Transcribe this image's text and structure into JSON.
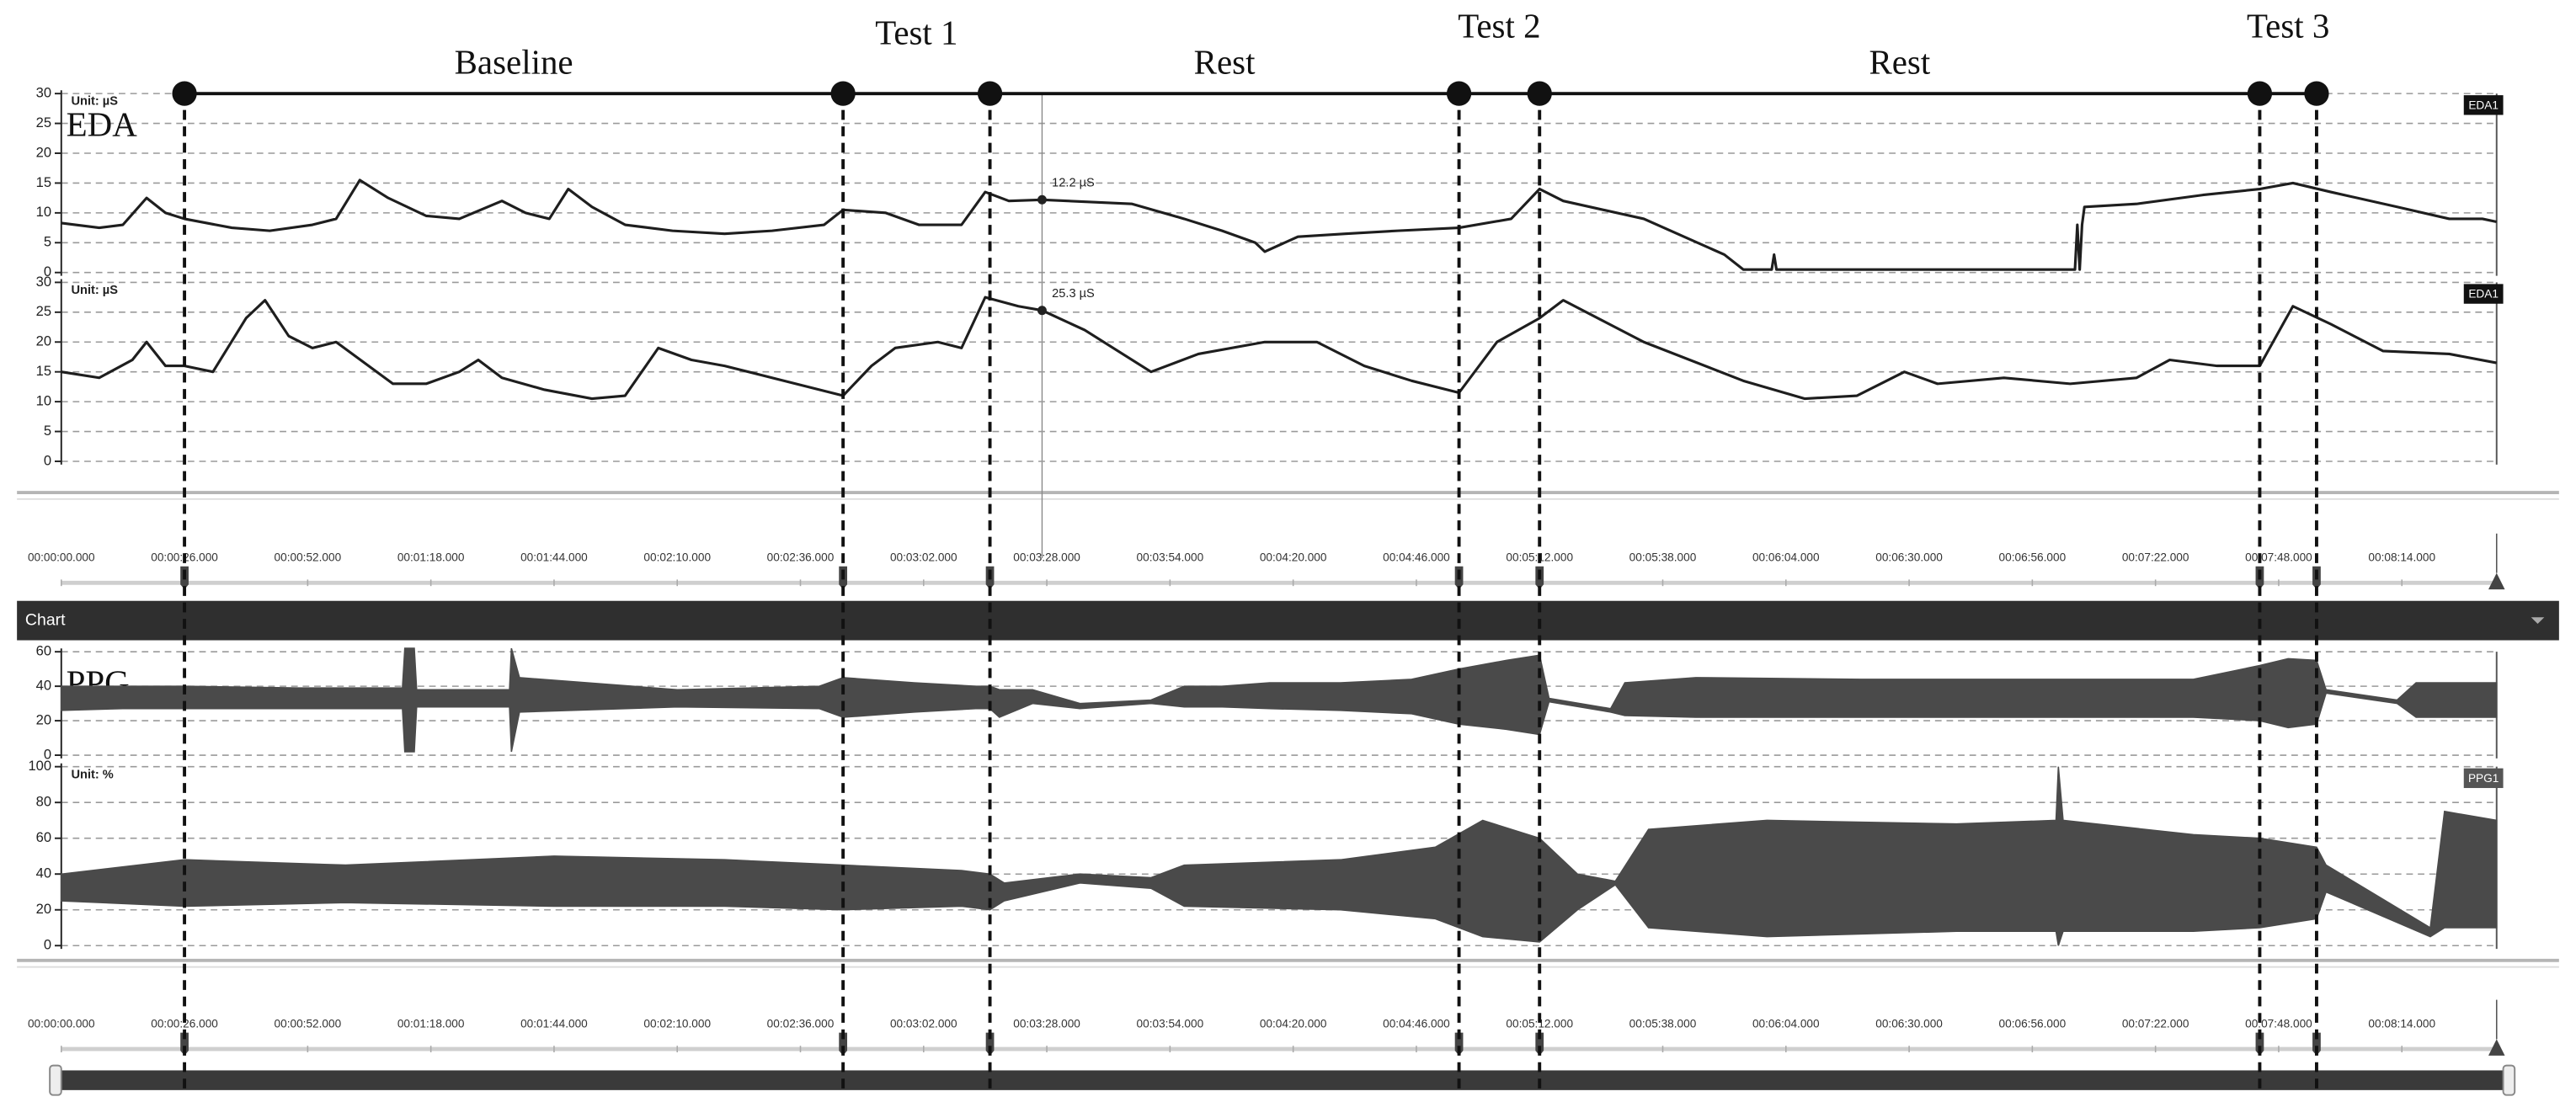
{
  "phases": {
    "events": [
      26,
      165,
      196,
      295,
      312,
      464,
      476
    ],
    "labels": [
      "Baseline",
      "Test 1",
      "Rest",
      "Test 2",
      "Rest",
      "Test 3"
    ]
  },
  "time_axis": {
    "xlim": [
      0,
      514
    ],
    "ticks": [
      {
        "value": 0,
        "label": "00:00:00.000"
      },
      {
        "value": 26,
        "label": "00:00:26.000"
      },
      {
        "value": 52,
        "label": "00:00:52.000"
      },
      {
        "value": 78,
        "label": "00:01:18.000"
      },
      {
        "value": 104,
        "label": "00:01:44.000"
      },
      {
        "value": 130,
        "label": "00:02:10.000"
      },
      {
        "value": 156,
        "label": "00:02:36.000"
      },
      {
        "value": 182,
        "label": "00:03:02.000"
      },
      {
        "value": 208,
        "label": "00:03:28.000"
      },
      {
        "value": 234,
        "label": "00:03:54.000"
      },
      {
        "value": 260,
        "label": "00:04:20.000"
      },
      {
        "value": 286,
        "label": "00:04:46.000"
      },
      {
        "value": 312,
        "label": "00:05:12.000"
      },
      {
        "value": 338,
        "label": "00:05:38.000"
      },
      {
        "value": 364,
        "label": "00:06:04.000"
      },
      {
        "value": 390,
        "label": "00:06:30.000"
      },
      {
        "value": 416,
        "label": "00:06:56.000"
      },
      {
        "value": 442,
        "label": "00:07:22.000"
      },
      {
        "value": 468,
        "label": "00:07:48.000"
      },
      {
        "value": 494,
        "label": "00:08:14.000"
      }
    ]
  },
  "chart_bar": {
    "title": "Chart"
  },
  "panels": [
    {
      "label": "EDA",
      "unit": "Unit: µS",
      "tag": "EDA1",
      "tag_color": "#111111",
      "ylim": [
        0,
        30
      ],
      "yticks": [
        0,
        5,
        10,
        15,
        20,
        25,
        30
      ],
      "color": "#1e1e1e",
      "series": {
        "x": [
          0,
          8,
          13,
          18,
          22,
          26,
          36,
          44,
          53,
          58,
          63,
          69,
          77,
          84,
          93,
          98,
          103,
          107,
          112,
          119,
          129,
          140,
          150,
          161,
          165,
          174,
          181,
          190,
          195,
          200,
          207,
          226,
          237,
          245,
          252,
          254,
          261,
          271,
          282,
          295,
          306,
          312,
          317,
          334,
          351,
          355,
          361,
          361.5,
          362,
          421,
          425,
          425.5,
          426,
          426.5,
          427,
          438,
          452,
          464,
          471,
          479,
          493,
          504,
          511,
          514
        ],
        "values": [
          8.3,
          7.5,
          8,
          12.5,
          10,
          9,
          7.5,
          7,
          8,
          9,
          15.5,
          12.5,
          9.5,
          9,
          12,
          10,
          9,
          14,
          11,
          8,
          7,
          6.5,
          7,
          8,
          10.5,
          10,
          8,
          8,
          13.5,
          12,
          12.2,
          11.5,
          9,
          7,
          5,
          3.5,
          6,
          6.5,
          7,
          7.5,
          9,
          14,
          12,
          9,
          3,
          0.5,
          0.5,
          3,
          0.5,
          0.5,
          0.5,
          8,
          0.5,
          8,
          11,
          11.5,
          13,
          14,
          15,
          13.5,
          11,
          9,
          9,
          8.5
        ]
      },
      "annotation": {
        "x": 207,
        "y": 12.2,
        "label": "12.2 µS"
      }
    },
    {
      "unit": "Unit: µS",
      "tag": "EDA1",
      "tag_color": "#111111",
      "ylim": [
        0,
        30
      ],
      "yticks": [
        0,
        5,
        10,
        15,
        20,
        25,
        30
      ],
      "color": "#1e1e1e",
      "series": {
        "x": [
          0,
          8,
          15,
          18,
          22,
          26,
          32,
          39,
          43,
          48,
          53,
          58,
          70,
          77,
          84,
          88,
          93,
          102,
          112,
          119,
          126,
          133,
          140,
          150,
          165,
          171,
          176,
          185,
          190,
          195,
          202,
          207,
          216,
          230,
          240,
          254,
          265,
          275,
          285,
          295,
          303,
          312,
          317,
          334,
          355,
          368,
          379,
          389,
          396,
          410,
          424,
          438,
          445,
          455,
          464,
          471,
          479,
          490,
          504,
          514
        ],
        "values": [
          15,
          14,
          17,
          20,
          16,
          16,
          15,
          24,
          27,
          21,
          19,
          20,
          13,
          13,
          15,
          17,
          14,
          12,
          10.5,
          11,
          19,
          17,
          16,
          14,
          11,
          16,
          19,
          20,
          19,
          27.5,
          26,
          25.3,
          22,
          15,
          18,
          20,
          20,
          16,
          13.5,
          11.5,
          20,
          24,
          27,
          20,
          13.5,
          10.5,
          11,
          15,
          13,
          14,
          13,
          14,
          17,
          16,
          16,
          26,
          23,
          18.5,
          18,
          16.5
        ]
      },
      "annotation": {
        "x": 207,
        "y": 25.3,
        "label": "25.3 µS"
      }
    },
    {
      "label": "PPG",
      "ylim": [
        0,
        60
      ],
      "yticks": [
        0,
        20,
        40,
        60
      ],
      "color": "#4a4a4a",
      "band": {
        "x": [
          0,
          13,
          26,
          50,
          72,
          72.5,
          74.5,
          75,
          94.6,
          95,
          96.7,
          130,
          160,
          165,
          180,
          193,
          196,
          198,
          205,
          215,
          230,
          237,
          245,
          255,
          270,
          285,
          295,
          305,
          312,
          314,
          327,
          330,
          345,
          380,
          420,
          450,
          464,
          470,
          476,
          478,
          493,
          497,
          514
        ],
        "lower": [
          26,
          27,
          27,
          27,
          27,
          2,
          2,
          28,
          28,
          2,
          25,
          28,
          27,
          22,
          25,
          27,
          27,
          22,
          30,
          27,
          30,
          28,
          28,
          27,
          26,
          24,
          18,
          15,
          12,
          31,
          25,
          23,
          22,
          22,
          22,
          22,
          20,
          16,
          18,
          36,
          30,
          22,
          22
        ],
        "upper": [
          40,
          40,
          40,
          39,
          39,
          62,
          62,
          38,
          38,
          62,
          45,
          38,
          40,
          45,
          42,
          40,
          40,
          38,
          38,
          30,
          32,
          40,
          40,
          42,
          42,
          44,
          50,
          55,
          58,
          33,
          27,
          42,
          45,
          44,
          44,
          44,
          52,
          56,
          55,
          38,
          32,
          42,
          42
        ]
      }
    },
    {
      "unit": "Unit: %",
      "tag": "PPG1",
      "tag_color": "#555555",
      "ylim": [
        0,
        100
      ],
      "yticks": [
        0,
        20,
        40,
        60,
        80,
        100
      ],
      "color": "#4a4a4a",
      "band": {
        "x": [
          0,
          26,
          60,
          104,
          140,
          165,
          190,
          196,
          199,
          215,
          230,
          237,
          270,
          290,
          300,
          312,
          320,
          328,
          335,
          360,
          400,
          421,
          421.5,
          422.5,
          450,
          464,
          476,
          478,
          500,
          503,
          514
        ],
        "lower": [
          25,
          22,
          24,
          22,
          22,
          20,
          22,
          20,
          25,
          35,
          32,
          22,
          20,
          15,
          5,
          2,
          20,
          34,
          10,
          5,
          8,
          8,
          0,
          8,
          8,
          10,
          15,
          30,
          5,
          10,
          10
        ],
        "upper": [
          40,
          48,
          45,
          50,
          48,
          45,
          42,
          40,
          35,
          40,
          38,
          45,
          48,
          55,
          70,
          60,
          40,
          36,
          65,
          70,
          68,
          70,
          100,
          70,
          62,
          60,
          55,
          45,
          10,
          75,
          70
        ]
      }
    }
  ]
}
